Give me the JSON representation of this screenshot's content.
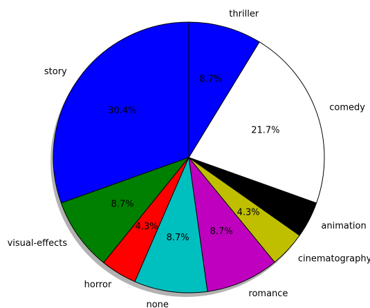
{
  "chart_data": {
    "type": "pie",
    "categories": [
      "story",
      "visual-effects",
      "horror",
      "none",
      "romance",
      "cinematography",
      "animation",
      "comedy",
      "thriller"
    ],
    "values": [
      30.4,
      8.7,
      4.3,
      8.7,
      8.7,
      4.3,
      4.3,
      21.7,
      8.7
    ],
    "value_labels": [
      "30.4%",
      "8.7%",
      "4.3%",
      "8.7%",
      "8.7%",
      "4.3%",
      "4.3%",
      "21.7%",
      "8.7%"
    ],
    "colors": [
      "#0000ff",
      "#008000",
      "#ff0000",
      "#00bfbf",
      "#bf00bf",
      "#bfbf00",
      "#000000",
      "#ffffff",
      "#0000ff"
    ],
    "start_angle": 90,
    "shadow": true
  }
}
